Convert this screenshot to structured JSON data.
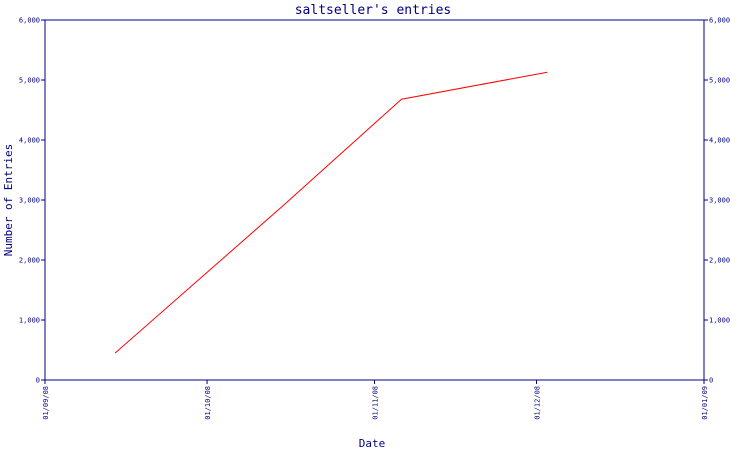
{
  "chart_data": {
    "type": "line",
    "title": "saltseller's entries",
    "xlabel": "Date",
    "ylabel": "Number of Entries",
    "x_ticks": [
      "01/09/08",
      "01/10/08",
      "01/11/08",
      "01/12/08",
      "01/01/09"
    ],
    "y_ticks": [
      "0",
      "1,000",
      "2,000",
      "3,000",
      "4,000",
      "5,000",
      "6,000"
    ],
    "xlim": [
      "2008-09-01",
      "2009-01-01"
    ],
    "ylim": [
      0,
      6000
    ],
    "grid": false,
    "right_axis_mirrored": true,
    "series": [
      {
        "color": "#ff0000",
        "x": [
          "2008-09-14",
          "2008-10-15",
          "2008-11-06",
          "2008-12-03"
        ],
        "y": [
          450,
          2900,
          4680,
          5130
        ]
      }
    ]
  }
}
